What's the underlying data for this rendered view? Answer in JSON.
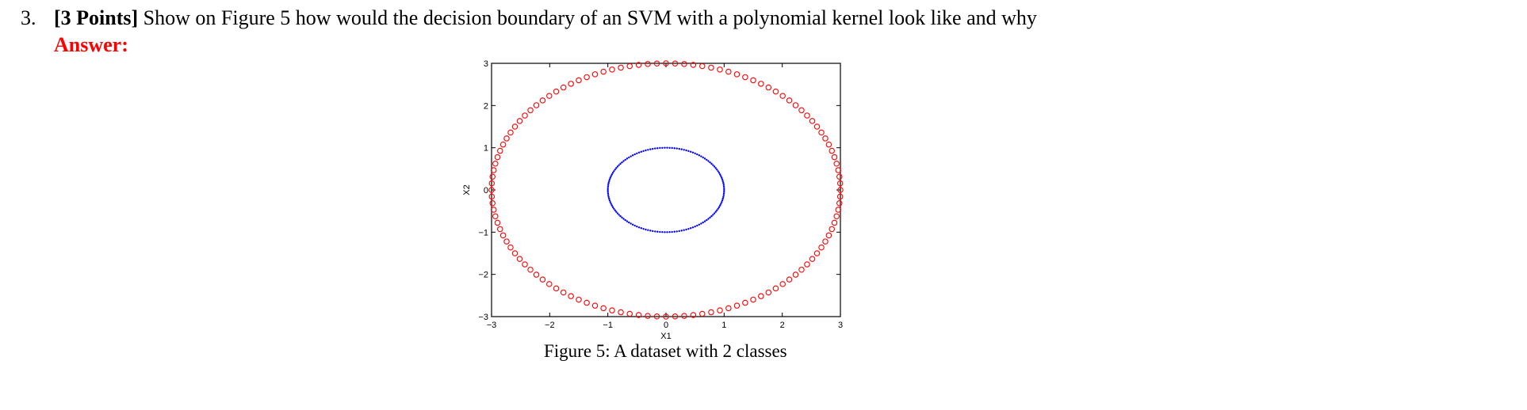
{
  "question": {
    "number": "3.",
    "points": "[3 Points]",
    "text": "Show on Figure 5 how would the decision boundary of an SVM with a polynomial kernel look like and why"
  },
  "answer_label": "Answer:",
  "caption": "Figure 5: A dataset with 2 classes",
  "colors": {
    "answer": "#ff0000",
    "outer_class": "#ff0000",
    "inner_class": "#0000ff"
  },
  "chart_data": {
    "type": "scatter",
    "xlabel": "X1",
    "ylabel": "X2",
    "xlim": [
      -3,
      3
    ],
    "ylim": [
      -3,
      3
    ],
    "x_ticks": [
      "-3",
      "-2",
      "-1",
      "0",
      "1",
      "2",
      "3"
    ],
    "y_ticks": [
      "-3",
      "-2",
      "-1",
      "0",
      "1",
      "2",
      "3"
    ],
    "grid": false,
    "series": [
      {
        "shape": "circle (x = 3cos t, y = 3sin t)",
        "radius": 3,
        "center": [
          0,
          0
        ],
        "n_points": 120,
        "marker": "open-circle",
        "color": "#ff0000"
      },
      {
        "shape": "circle (x = cos t, y = sin t)",
        "radius": 1,
        "center": [
          0,
          0
        ],
        "n_points": 150,
        "marker": "dot",
        "color": "#0000ff"
      }
    ]
  }
}
